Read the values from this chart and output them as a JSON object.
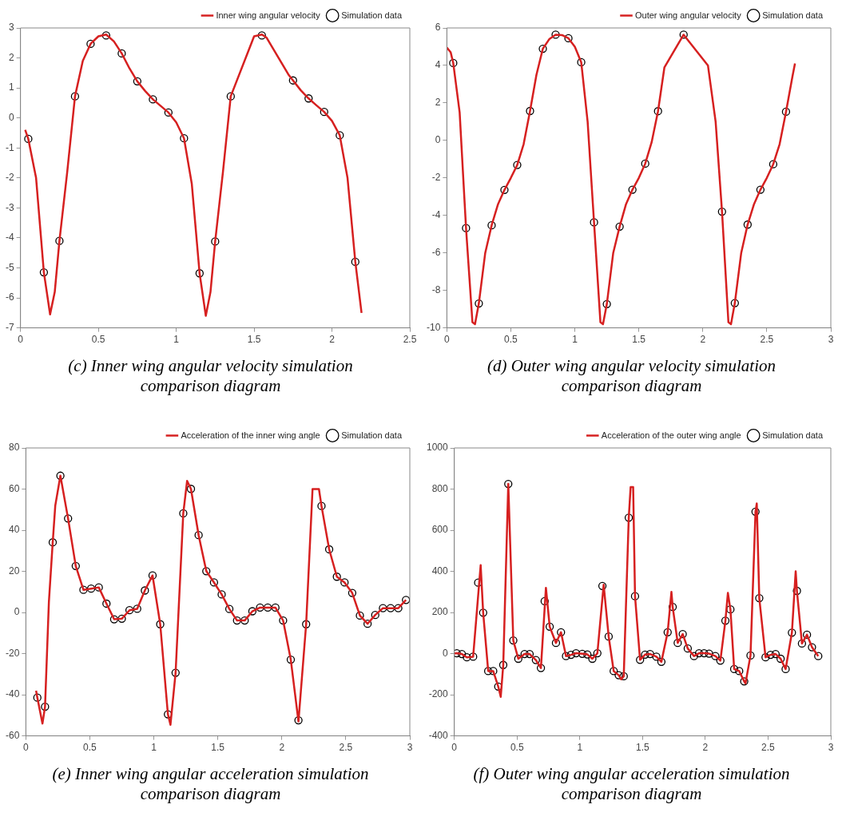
{
  "chart_data": [
    {
      "type": "line",
      "title": "(c) Inner wing angular velocity simulation comparison  diagram",
      "xlim": [
        0,
        2.5
      ],
      "xticks": [
        0,
        0.5,
        1,
        1.5,
        2,
        2.5
      ],
      "ylim": [
        -7,
        3
      ],
      "yticks": [
        -7,
        -6,
        -5,
        -4,
        -3,
        -2,
        -1,
        0,
        1,
        2,
        3
      ],
      "grid": false,
      "legend": "top right",
      "series": [
        {
          "type": "line",
          "name": "Inner wing angular velocity",
          "color": "#d62020",
          "marker": "none",
          "x": [
            0.03,
            0.05,
            0.1,
            0.15,
            0.19,
            0.22,
            0.25,
            0.3,
            0.35,
            0.4,
            0.45,
            0.5,
            0.55,
            0.6,
            0.65,
            0.7,
            0.75,
            0.8,
            0.85,
            0.9,
            0.95,
            1.0,
            1.05,
            1.1,
            1.15,
            1.19,
            1.22,
            1.25,
            1.3,
            1.35,
            1.5,
            1.55,
            1.58,
            1.72,
            1.75,
            1.8,
            1.85,
            1.9,
            1.95,
            2.0,
            2.05,
            2.1,
            2.15,
            2.19
          ],
          "values": [
            -0.4,
            -0.7,
            -2.0,
            -5.15,
            -6.55,
            -5.8,
            -4.1,
            -1.8,
            0.72,
            1.9,
            2.47,
            2.72,
            2.78,
            2.55,
            2.15,
            1.65,
            1.22,
            0.9,
            0.62,
            0.4,
            0.18,
            -0.15,
            -0.68,
            -2.2,
            -5.18,
            -6.6,
            -5.8,
            -4.12,
            -1.8,
            0.72,
            2.72,
            2.78,
            2.68,
            1.45,
            1.25,
            0.92,
            0.65,
            0.42,
            0.2,
            -0.1,
            -0.58,
            -2.0,
            -4.8,
            -6.5
          ]
        },
        {
          "type": "scatter",
          "name": "Simulation data",
          "color": "#000000",
          "marker": "circle",
          "x": [
            0.05,
            0.15,
            0.25,
            0.35,
            0.45,
            0.55,
            0.65,
            0.75,
            0.85,
            0.95,
            1.05,
            1.15,
            1.25,
            1.35,
            1.45,
            1.55,
            1.65,
            1.75,
            1.85,
            1.95,
            2.05,
            2.15
          ],
          "values": [
            -0.7,
            -5.15,
            -4.1,
            0.72,
            2.47,
            2.75,
            2.15,
            1.22,
            0.62,
            0.18,
            -0.68,
            -5.18,
            -4.12,
            0.72,
            null,
            2.75,
            null,
            1.25,
            0.65,
            0.2,
            -0.58,
            -4.8
          ]
        }
      ]
    },
    {
      "type": "line",
      "title": "(d) Outer wing angular velocity simulation comparison  diagram",
      "xlim": [
        0,
        3
      ],
      "xticks": [
        0,
        0.5,
        1,
        1.5,
        2,
        2.5,
        3
      ],
      "ylim": [
        -10,
        6
      ],
      "yticks": [
        -10,
        -8,
        -6,
        -4,
        -2,
        0,
        2,
        4,
        6
      ],
      "grid": false,
      "legend": "top right",
      "series": [
        {
          "type": "line",
          "name": "Outer wing angular velocity",
          "color": "#d62020",
          "marker": "none",
          "x": [
            0,
            0.03,
            0.05,
            0.1,
            0.15,
            0.2,
            0.22,
            0.25,
            0.3,
            0.35,
            0.4,
            0.45,
            0.5,
            0.55,
            0.6,
            0.65,
            0.7,
            0.75,
            0.8,
            0.85,
            0.9,
            0.95,
            1.0,
            1.05,
            1.1,
            1.15,
            1.2,
            1.22,
            1.25,
            1.3,
            1.35,
            1.4,
            1.45,
            1.5,
            1.55,
            1.6,
            1.65,
            1.7,
            1.85,
            2.04,
            2.1,
            2.15,
            2.2,
            2.22,
            2.25,
            2.3,
            2.35,
            2.4,
            2.45,
            2.5,
            2.55,
            2.6,
            2.65,
            2.7,
            2.72
          ],
          "values": [
            4.95,
            4.7,
            4.13,
            1.5,
            -4.68,
            -9.7,
            -9.8,
            -8.7,
            -6.0,
            -4.53,
            -3.4,
            -2.64,
            -2.0,
            -1.31,
            -0.2,
            1.57,
            3.5,
            4.89,
            5.4,
            5.64,
            5.62,
            5.45,
            5.0,
            4.17,
            1.0,
            -4.37,
            -9.7,
            -9.8,
            -8.73,
            -6.0,
            -4.6,
            -3.4,
            -2.63,
            -2.0,
            -1.24,
            -0.1,
            1.56,
            3.9,
            5.64,
            4.0,
            1.0,
            -3.8,
            -9.7,
            -9.8,
            -8.68,
            -6.0,
            -4.49,
            -3.4,
            -2.63,
            -2.0,
            -1.27,
            -0.2,
            1.53,
            3.4,
            4.1
          ]
        },
        {
          "type": "scatter",
          "name": "Simulation data",
          "color": "#000000",
          "marker": "circle",
          "x": [
            0.05,
            0.15,
            0.25,
            0.35,
            0.45,
            0.55,
            0.65,
            0.75,
            0.85,
            0.95,
            1.05,
            1.15,
            1.25,
            1.35,
            1.45,
            1.55,
            1.65,
            1.75,
            1.85,
            1.95,
            2.05,
            2.15,
            2.25,
            2.35,
            2.45,
            2.55,
            2.65
          ],
          "values": [
            4.13,
            -4.68,
            -8.7,
            -4.53,
            -2.64,
            -1.31,
            1.57,
            4.89,
            5.64,
            5.45,
            4.17,
            -4.37,
            -8.73,
            -4.6,
            -2.63,
            -1.24,
            1.56,
            null,
            5.64,
            null,
            null,
            -3.8,
            -8.68,
            -4.49,
            -2.63,
            -1.27,
            1.53
          ]
        }
      ]
    },
    {
      "type": "line",
      "title": "(e) Inner wing angular acceleration simulation comparison  diagram",
      "xlim": [
        0,
        3
      ],
      "xticks": [
        0,
        0.5,
        1,
        1.5,
        2,
        2.5,
        3
      ],
      "ylim": [
        -60,
        80
      ],
      "yticks": [
        -60,
        -40,
        -20,
        0,
        20,
        40,
        60,
        80
      ],
      "grid": false,
      "legend": "top right",
      "series": [
        {
          "type": "line",
          "name": "Acceleration of the inner wing angle",
          "color": "#d62020",
          "marker": "none",
          "x": [
            0.08,
            0.09,
            0.13,
            0.15,
            0.18,
            0.21,
            0.23,
            0.27,
            0.33,
            0.39,
            0.45,
            0.51,
            0.57,
            0.63,
            0.69,
            0.75,
            0.81,
            0.87,
            0.93,
            0.99,
            1.05,
            1.11,
            1.13,
            1.17,
            1.23,
            1.26,
            1.29,
            1.35,
            1.41,
            1.47,
            1.53,
            1.59,
            1.65,
            1.71,
            1.77,
            1.83,
            1.89,
            1.95,
            2.01,
            2.07,
            2.13,
            2.19,
            2.24,
            2.29,
            2.31,
            2.37,
            2.43,
            2.49,
            2.55,
            2.61,
            2.67,
            2.73,
            2.79,
            2.85,
            2.91,
            2.97
          ],
          "values": [
            -38,
            -41.4,
            -54,
            -45.8,
            5,
            34.1,
            52,
            66.5,
            45.7,
            22.6,
            11,
            11.6,
            12.2,
            4.3,
            -3.3,
            -3.0,
            1.1,
            1.8,
            10.7,
            18,
            -5.7,
            -49.5,
            -54.6,
            -29.3,
            48.2,
            64,
            60.1,
            37.6,
            20.1,
            14.6,
            8.8,
            1.7,
            -3.9,
            -3.9,
            0.6,
            2.4,
            2.4,
            2.4,
            -3.9,
            -22.9,
            -53,
            -5.7,
            60,
            60,
            51.8,
            30.7,
            17.4,
            14.6,
            9.5,
            -1.5,
            -5.5,
            -1.2,
            2.1,
            2.1,
            2.1,
            6.1
          ]
        },
        {
          "type": "scatter",
          "name": "Simulation data",
          "color": "#000000",
          "marker": "circle",
          "x": [
            0.09,
            0.15,
            0.21,
            0.27,
            0.33,
            0.39,
            0.45,
            0.51,
            0.57,
            0.63,
            0.69,
            0.75,
            0.81,
            0.87,
            0.93,
            0.99,
            1.05,
            1.11,
            1.17,
            1.23,
            1.29,
            1.35,
            1.41,
            1.47,
            1.53,
            1.59,
            1.65,
            1.71,
            1.77,
            1.83,
            1.89,
            1.95,
            2.01,
            2.07,
            2.13,
            2.19,
            2.25,
            2.31,
            2.37,
            2.43,
            2.49,
            2.55,
            2.61,
            2.67,
            2.73,
            2.79,
            2.85,
            2.91,
            2.97
          ],
          "values": [
            -41.4,
            -45.8,
            34.1,
            66.5,
            45.7,
            22.6,
            11,
            11.6,
            12.2,
            4.3,
            -3.3,
            -3.0,
            1.1,
            1.8,
            10.7,
            18,
            -5.7,
            -49.5,
            -29.3,
            48.2,
            60.1,
            37.6,
            20.1,
            14.6,
            8.8,
            1.7,
            -3.9,
            -3.9,
            0.6,
            2.4,
            2.4,
            2.4,
            -3.9,
            -22.9,
            -52.4,
            -5.7,
            null,
            51.8,
            30.7,
            17.4,
            14.6,
            9.5,
            -1.5,
            -5.5,
            -1.2,
            2.1,
            2.1,
            2.1,
            6.1
          ]
        }
      ]
    },
    {
      "type": "line",
      "title": "(f) Outer wing angular acceleration simulation comparison  diagram",
      "xlim": [
        0,
        3
      ],
      "xticks": [
        0,
        0.5,
        1,
        1.5,
        2,
        2.5,
        3
      ],
      "ylim": [
        -400,
        1000
      ],
      "yticks": [
        -400,
        -200,
        0,
        200,
        400,
        600,
        800,
        1000
      ],
      "grid": false,
      "legend": "top right",
      "series": [
        {
          "type": "line",
          "name": "Acceleration of the outer wing angle",
          "color": "#d62020",
          "marker": "none",
          "x": [
            0,
            0.02,
            0.06,
            0.1,
            0.15,
            0.21,
            0.23,
            0.27,
            0.31,
            0.35,
            0.37,
            0.39,
            0.43,
            0.47,
            0.51,
            0.56,
            0.6,
            0.65,
            0.69,
            0.73,
            0.76,
            0.81,
            0.85,
            0.89,
            0.93,
            0.97,
            1.02,
            1.06,
            1.1,
            1.14,
            1.19,
            1.23,
            1.27,
            1.31,
            1.33,
            1.35,
            1.39,
            1.405,
            1.425,
            1.44,
            1.48,
            1.52,
            1.56,
            1.61,
            1.65,
            1.7,
            1.73,
            1.74,
            1.78,
            1.82,
            1.86,
            1.91,
            1.95,
            1.99,
            2.03,
            2.08,
            2.12,
            2.16,
            2.18,
            2.2,
            2.23,
            2.27,
            2.31,
            2.32,
            2.36,
            2.4,
            2.41,
            2.43,
            2.48,
            2.52,
            2.56,
            2.6,
            2.64,
            2.69,
            2.72,
            2.73,
            2.77,
            2.81,
            2.85,
            2.9
          ],
          "values": [
            0,
            2,
            -2,
            -18,
            -15,
            430,
            199,
            -85,
            -85,
            -160,
            -210,
            -55,
            825,
            64,
            -25,
            -2,
            -2,
            -31,
            -70,
            320,
            131,
            52,
            104,
            -12,
            -6,
            2,
            -1,
            -4,
            -25,
            2,
            335,
            83,
            -85,
            -105,
            -125,
            -110,
            661,
            810,
            810,
            279,
            -30,
            -5,
            -2,
            -15,
            -40,
            104,
            300,
            227,
            52,
            95,
            25,
            -12,
            2,
            2,
            0,
            -12,
            -34,
            160,
            295,
            215,
            -75,
            -85,
            -135,
            -145,
            -9,
            690,
            730,
            270,
            -18,
            -6,
            -2,
            -25,
            -75,
            102,
            400,
            305,
            49,
            92,
            31,
            -12
          ]
        },
        {
          "type": "scatter",
          "name": "Simulation data",
          "color": "#000000",
          "marker": "circle",
          "x": [
            0.02,
            0.06,
            0.1,
            0.15,
            0.19,
            0.23,
            0.27,
            0.31,
            0.35,
            0.39,
            0.43,
            0.47,
            0.51,
            0.56,
            0.6,
            0.65,
            0.69,
            0.72,
            0.76,
            0.81,
            0.85,
            0.89,
            0.93,
            0.97,
            1.02,
            1.06,
            1.1,
            1.14,
            1.18,
            1.23,
            1.27,
            1.31,
            1.35,
            1.39,
            1.44,
            1.48,
            1.52,
            1.56,
            1.61,
            1.65,
            1.7,
            1.74,
            1.78,
            1.82,
            1.86,
            1.91,
            1.95,
            1.99,
            2.03,
            2.08,
            2.12,
            2.16,
            2.2,
            2.23,
            2.27,
            2.31,
            2.36,
            2.4,
            2.43,
            2.48,
            2.52,
            2.56,
            2.6,
            2.64,
            2.69,
            2.73,
            2.77,
            2.81,
            2.85,
            2.9
          ],
          "values": [
            2,
            -2,
            -18,
            -15,
            345,
            199,
            -85,
            -85,
            -160,
            -55,
            825,
            64,
            -25,
            -2,
            -2,
            -31,
            -70,
            255,
            131,
            52,
            104,
            -12,
            -6,
            2,
            -1,
            -4,
            -25,
            2,
            329,
            83,
            -85,
            -105,
            -110,
            661,
            279,
            -30,
            -5,
            -2,
            -15,
            -40,
            104,
            227,
            52,
            95,
            25,
            -12,
            2,
            2,
            0,
            -12,
            -34,
            160,
            215,
            -75,
            -85,
            -135,
            -9,
            690,
            270,
            -18,
            -6,
            -2,
            -25,
            -75,
            102,
            305,
            49,
            92,
            31,
            -12
          ]
        }
      ]
    }
  ]
}
